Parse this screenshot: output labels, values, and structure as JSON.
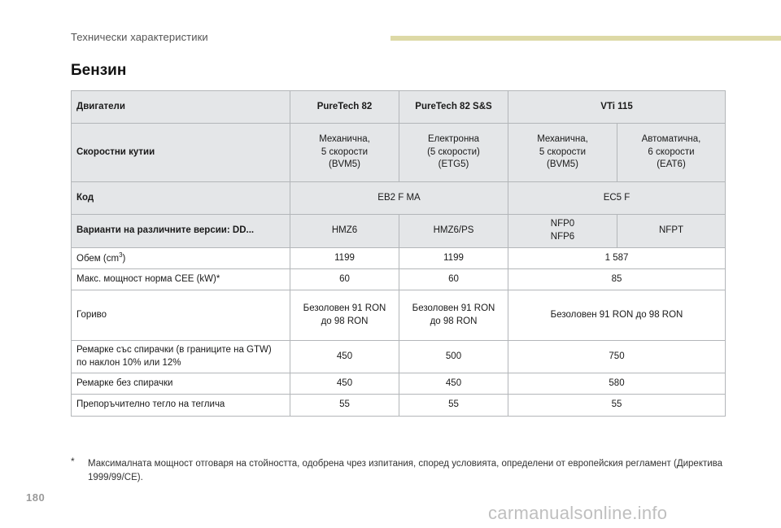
{
  "header": {
    "section": "Технически характеристики"
  },
  "title": "Бензин",
  "table": {
    "headers": [
      "Двигатели",
      "PureTech 82",
      "PureTech 82 S&S",
      "VTi 115"
    ],
    "gearbox": {
      "label": "Скоростни кутии",
      "options": [
        {
          "l1": "Механична,",
          "l2": "5 скорости",
          "l3": "(BVM5)"
        },
        {
          "l1": "Електронна",
          "l2": "(5 скорости)",
          "l3": "(ETG5)"
        },
        {
          "l1": "Механична,",
          "l2": "5 скорости",
          "l3": "(BVM5)"
        },
        {
          "l1": "Автоматична,",
          "l2": "6 скорости",
          "l3": "(EAT6)"
        }
      ]
    },
    "code": {
      "label": "Код",
      "v1": "EB2 F MA",
      "v2": "EC5 F"
    },
    "variants": {
      "label": "Варианти на различните версии: DD...",
      "v1": "HMZ6",
      "v2": "HMZ6/PS",
      "v3a": "NFP0",
      "v3b": "NFP6",
      "v4": "NFPT"
    },
    "volume": {
      "label": "Обем (cm",
      "sup": "3",
      "label_end": ")",
      "v1": "1199",
      "v2": "1199",
      "v3": "1 587"
    },
    "power": {
      "label": "Макс. мощност норма CEE (kW)*",
      "v1": "60",
      "v2": "60",
      "v3": "85"
    },
    "fuel": {
      "label": "Гориво",
      "v1a": "Безоловен 91 RON",
      "v1b": "до 98 RON",
      "v2a": "Безоловен 91 RON",
      "v2b": "до 98 RON",
      "v3": "Безоловен 91 RON до 98 RON"
    },
    "trailer_braked": {
      "label1": "Ремарке със спирачки (в границите на GTW)",
      "label2": "по наклон 10% или 12%",
      "v1": "450",
      "v2": "500",
      "v3": "750"
    },
    "trailer_unbraked": {
      "label": "Ремарке без спирачки",
      "v1": "450",
      "v2": "450",
      "v3": "580"
    },
    "nose_weight": {
      "label": "Препоръчително тегло на теглича",
      "v1": "55",
      "v2": "55",
      "v3": "55"
    }
  },
  "footnote": {
    "marker": "*",
    "text": "Максималната мощност отговаря на стойността, одобрена чрез изпитания, според условията, определени от европейския регламент (Директива 1999/99/CE)."
  },
  "page_number": "180",
  "watermark": "carmanualsonline.info",
  "colors": {
    "header_bar": "#ddd9a6",
    "gray_row": "#e4e6e8",
    "border": "#b3b6b9"
  }
}
